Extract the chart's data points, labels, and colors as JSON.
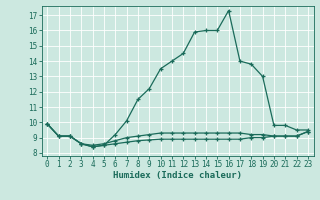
{
  "xlabel": "Humidex (Indice chaleur)",
  "background_color": "#cce8e0",
  "grid_color": "#ffffff",
  "line_color": "#1a6b5a",
  "xlim": [
    -0.5,
    23.5
  ],
  "ylim": [
    7.8,
    17.6
  ],
  "yticks": [
    8,
    9,
    10,
    11,
    12,
    13,
    14,
    15,
    16,
    17
  ],
  "xticks": [
    0,
    1,
    2,
    3,
    4,
    5,
    6,
    7,
    8,
    9,
    10,
    11,
    12,
    13,
    14,
    15,
    16,
    17,
    18,
    19,
    20,
    21,
    22,
    23
  ],
  "series1_x": [
    0,
    1,
    2,
    3,
    4,
    5,
    6,
    7,
    8,
    9,
    10,
    11,
    12,
    13,
    14,
    15,
    16,
    17,
    18,
    19,
    20,
    21,
    22,
    23
  ],
  "series1_y": [
    9.9,
    9.1,
    9.1,
    8.6,
    8.4,
    8.5,
    9.2,
    10.1,
    11.5,
    12.2,
    13.5,
    14.0,
    14.5,
    15.9,
    16.0,
    16.0,
    17.3,
    14.0,
    13.8,
    13.0,
    9.8,
    9.8,
    9.5,
    9.5
  ],
  "series2_x": [
    0,
    1,
    2,
    3,
    4,
    5,
    6,
    7,
    8,
    9,
    10,
    11,
    12,
    13,
    14,
    15,
    16,
    17,
    18,
    19,
    20,
    21,
    22,
    23
  ],
  "series2_y": [
    9.9,
    9.1,
    9.1,
    8.6,
    8.5,
    8.6,
    8.8,
    9.0,
    9.1,
    9.2,
    9.3,
    9.3,
    9.3,
    9.3,
    9.3,
    9.3,
    9.3,
    9.3,
    9.2,
    9.2,
    9.1,
    9.1,
    9.1,
    9.4
  ],
  "series3_x": [
    0,
    1,
    2,
    3,
    4,
    5,
    6,
    7,
    8,
    9,
    10,
    11,
    12,
    13,
    14,
    15,
    16,
    17,
    18,
    19,
    20,
    21,
    22,
    23
  ],
  "series3_y": [
    9.9,
    9.1,
    9.1,
    8.6,
    8.4,
    8.5,
    8.6,
    8.7,
    8.8,
    8.85,
    8.9,
    8.9,
    8.9,
    8.9,
    8.9,
    8.9,
    8.9,
    8.9,
    9.0,
    9.0,
    9.1,
    9.1,
    9.1,
    9.4
  ],
  "tick_fontsize": 5.5,
  "xlabel_fontsize": 6.5
}
